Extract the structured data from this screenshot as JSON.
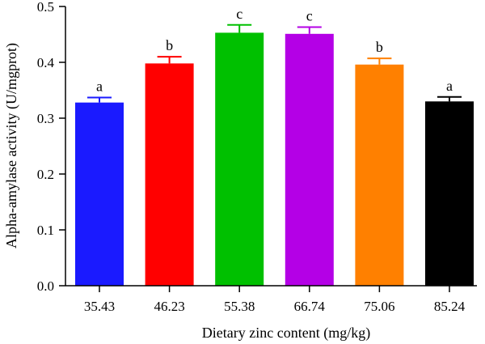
{
  "chart_data": {
    "type": "bar",
    "title": "",
    "xlabel": "Dietary zinc content (mg/kg)",
    "ylabel": "Alpha-amylase activity (U/mgprot)",
    "ylim": [
      0,
      0.5
    ],
    "yticks": [
      "0.0",
      "0.1",
      "0.2",
      "0.3",
      "0.4",
      "0.5"
    ],
    "categories": [
      "35.43",
      "46.23",
      "55.38",
      "66.74",
      "75.06",
      "85.24"
    ],
    "values": [
      0.328,
      0.398,
      0.453,
      0.451,
      0.396,
      0.33
    ],
    "errors": [
      0.009,
      0.012,
      0.014,
      0.012,
      0.011,
      0.008
    ],
    "significance": [
      "a",
      "b",
      "c",
      "c",
      "b",
      "a"
    ],
    "colors": [
      "#1a1aff",
      "#ff0000",
      "#00c000",
      "#b400e6",
      "#ff8000",
      "#000000"
    ],
    "grid": false,
    "legend": "none"
  }
}
